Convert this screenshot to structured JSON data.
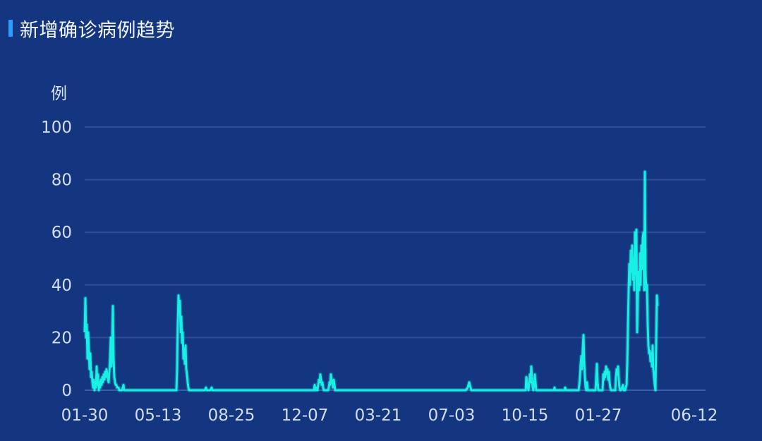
{
  "title": "新增确诊病例趋势",
  "colors": {
    "background": "#14357f",
    "line": "#18f0e6",
    "grid": "#2d4f96",
    "title_accent": "#2e9bff"
  },
  "chart_data": {
    "type": "line",
    "title": "新增确诊病例趋势",
    "ylabel": "例",
    "xlabel": "",
    "ylim": [
      0,
      100
    ],
    "yticks": [
      0,
      20,
      40,
      60,
      80,
      100
    ],
    "xtick_labels": [
      "01-30",
      "05-13",
      "08-25",
      "12-07",
      "03-21",
      "07-03",
      "10-15",
      "01-27",
      "06-12"
    ],
    "xtick_positions": [
      0,
      104,
      208,
      312,
      416,
      520,
      624,
      728,
      864
    ],
    "grid": true,
    "legend": "none",
    "series": [
      {
        "points": [
          [
            0,
            22
          ],
          [
            1,
            35
          ],
          [
            2,
            20
          ],
          [
            3,
            25
          ],
          [
            4,
            12
          ],
          [
            5,
            22
          ],
          [
            6,
            15
          ],
          [
            7,
            8
          ],
          [
            8,
            14
          ],
          [
            9,
            5
          ],
          [
            10,
            7
          ],
          [
            11,
            3
          ],
          [
            12,
            1
          ],
          [
            13,
            4
          ],
          [
            14,
            0
          ],
          [
            15,
            3
          ],
          [
            16,
            1
          ],
          [
            17,
            9
          ],
          [
            18,
            2
          ],
          [
            19,
            6
          ],
          [
            20,
            0
          ],
          [
            21,
            3
          ],
          [
            22,
            1
          ],
          [
            23,
            4
          ],
          [
            24,
            2
          ],
          [
            25,
            5
          ],
          [
            26,
            3
          ],
          [
            27,
            6
          ],
          [
            28,
            4
          ],
          [
            29,
            7
          ],
          [
            30,
            5
          ],
          [
            31,
            8
          ],
          [
            32,
            6
          ],
          [
            33,
            4
          ],
          [
            34,
            3
          ],
          [
            35,
            7
          ],
          [
            36,
            12
          ],
          [
            37,
            20
          ],
          [
            38,
            9
          ],
          [
            39,
            18
          ],
          [
            40,
            32
          ],
          [
            41,
            12
          ],
          [
            42,
            5
          ],
          [
            43,
            3
          ],
          [
            44,
            2
          ],
          [
            45,
            2
          ],
          [
            46,
            1
          ],
          [
            47,
            1
          ],
          [
            48,
            1
          ],
          [
            49,
            0
          ],
          [
            50,
            0
          ],
          [
            51,
            0
          ],
          [
            52,
            0
          ],
          [
            53,
            0
          ],
          [
            54,
            1
          ],
          [
            55,
            2
          ],
          [
            56,
            0
          ],
          [
            60,
            0
          ],
          [
            80,
            0
          ],
          [
            100,
            0
          ],
          [
            110,
            0
          ],
          [
            120,
            0
          ],
          [
            128,
            0
          ],
          [
            130,
            0
          ],
          [
            131,
            8
          ],
          [
            132,
            25
          ],
          [
            133,
            36
          ],
          [
            134,
            30
          ],
          [
            135,
            34
          ],
          [
            136,
            22
          ],
          [
            137,
            28
          ],
          [
            138,
            18
          ],
          [
            139,
            22
          ],
          [
            140,
            12
          ],
          [
            141,
            16
          ],
          [
            142,
            10
          ],
          [
            143,
            17
          ],
          [
            144,
            8
          ],
          [
            145,
            6
          ],
          [
            146,
            3
          ],
          [
            147,
            1
          ],
          [
            148,
            0
          ],
          [
            150,
            0
          ],
          [
            160,
            0
          ],
          [
            170,
            0
          ],
          [
            172,
            1
          ],
          [
            173,
            0
          ],
          [
            178,
            0
          ],
          [
            180,
            1
          ],
          [
            181,
            0
          ],
          [
            200,
            0
          ],
          [
            250,
            0
          ],
          [
            300,
            0
          ],
          [
            310,
            0
          ],
          [
            320,
            0
          ],
          [
            325,
            0
          ],
          [
            326,
            2
          ],
          [
            327,
            0
          ],
          [
            328,
            1
          ],
          [
            329,
            0
          ],
          [
            330,
            0
          ],
          [
            331,
            2
          ],
          [
            332,
            4
          ],
          [
            333,
            3
          ],
          [
            334,
            6
          ],
          [
            335,
            4
          ],
          [
            336,
            2
          ],
          [
            337,
            3
          ],
          [
            338,
            1
          ],
          [
            339,
            0
          ],
          [
            340,
            0
          ],
          [
            345,
            0
          ],
          [
            346,
            1
          ],
          [
            347,
            3
          ],
          [
            348,
            2
          ],
          [
            349,
            6
          ],
          [
            350,
            4
          ],
          [
            351,
            3
          ],
          [
            352,
            1
          ],
          [
            353,
            4
          ],
          [
            354,
            2
          ],
          [
            355,
            0
          ],
          [
            358,
            0
          ],
          [
            400,
            0
          ],
          [
            450,
            0
          ],
          [
            500,
            0
          ],
          [
            520,
            0
          ],
          [
            540,
            0
          ],
          [
            543,
            1
          ],
          [
            544,
            2
          ],
          [
            545,
            3
          ],
          [
            546,
            2
          ],
          [
            547,
            1
          ],
          [
            548,
            0
          ],
          [
            580,
            0
          ],
          [
            600,
            0
          ],
          [
            620,
            0
          ],
          [
            625,
            0
          ],
          [
            626,
            5
          ],
          [
            627,
            3
          ],
          [
            628,
            1
          ],
          [
            629,
            0
          ],
          [
            630,
            2
          ],
          [
            631,
            6
          ],
          [
            632,
            3
          ],
          [
            633,
            9
          ],
          [
            634,
            4
          ],
          [
            635,
            1
          ],
          [
            636,
            0
          ],
          [
            637,
            2
          ],
          [
            638,
            6
          ],
          [
            639,
            3
          ],
          [
            640,
            0
          ],
          [
            650,
            0
          ],
          [
            665,
            0
          ],
          [
            666,
            1
          ],
          [
            667,
            0
          ],
          [
            680,
            0
          ],
          [
            681,
            1
          ],
          [
            682,
            0
          ],
          [
            698,
            0
          ],
          [
            700,
            0
          ],
          [
            701,
            2
          ],
          [
            702,
            5
          ],
          [
            703,
            10
          ],
          [
            704,
            13
          ],
          [
            705,
            8
          ],
          [
            706,
            16
          ],
          [
            707,
            21
          ],
          [
            708,
            11
          ],
          [
            709,
            5
          ],
          [
            710,
            1
          ],
          [
            711,
            0
          ],
          [
            712,
            3
          ],
          [
            713,
            0
          ],
          [
            714,
            0
          ],
          [
            724,
            0
          ],
          [
            725,
            5
          ],
          [
            726,
            10
          ],
          [
            727,
            3
          ],
          [
            728,
            0
          ],
          [
            734,
            0
          ],
          [
            735,
            6
          ],
          [
            736,
            4
          ],
          [
            737,
            7
          ],
          [
            738,
            5
          ],
          [
            739,
            9
          ],
          [
            740,
            6
          ],
          [
            741,
            8
          ],
          [
            742,
            4
          ],
          [
            743,
            7
          ],
          [
            744,
            3
          ],
          [
            745,
            1
          ],
          [
            746,
            0
          ],
          [
            748,
            0
          ],
          [
            752,
            0
          ],
          [
            753,
            5
          ],
          [
            754,
            8
          ],
          [
            755,
            6
          ],
          [
            756,
            9
          ],
          [
            757,
            4
          ],
          [
            758,
            1
          ],
          [
            759,
            0
          ],
          [
            760,
            0
          ],
          [
            763,
            2
          ],
          [
            764,
            0
          ],
          [
            766,
            0
          ],
          [
            768,
            2
          ],
          [
            769,
            10
          ],
          [
            770,
            24
          ],
          [
            771,
            38
          ],
          [
            772,
            48
          ],
          [
            773,
            40
          ],
          [
            774,
            53
          ],
          [
            775,
            45
          ],
          [
            776,
            55
          ],
          [
            777,
            42
          ],
          [
            778,
            50
          ],
          [
            779,
            38
          ],
          [
            780,
            60
          ],
          [
            781,
            44
          ],
          [
            782,
            61
          ],
          [
            783,
            22
          ],
          [
            784,
            35
          ],
          [
            785,
            45
          ],
          [
            786,
            38
          ],
          [
            787,
            52
          ],
          [
            788,
            40
          ],
          [
            789,
            55
          ],
          [
            790,
            46
          ],
          [
            791,
            58
          ],
          [
            792,
            60
          ],
          [
            793,
            38
          ],
          [
            794,
            83
          ],
          [
            795,
            44
          ],
          [
            796,
            38
          ],
          [
            797,
            40
          ],
          [
            798,
            25
          ],
          [
            799,
            17
          ],
          [
            800,
            14
          ],
          [
            801,
            15
          ],
          [
            802,
            11
          ],
          [
            803,
            14
          ],
          [
            804,
            9
          ],
          [
            805,
            17
          ],
          [
            806,
            8
          ],
          [
            807,
            5
          ],
          [
            808,
            2
          ],
          [
            809,
            0
          ],
          [
            810,
            18
          ],
          [
            811,
            36
          ],
          [
            812,
            32
          ]
        ]
      }
    ]
  }
}
